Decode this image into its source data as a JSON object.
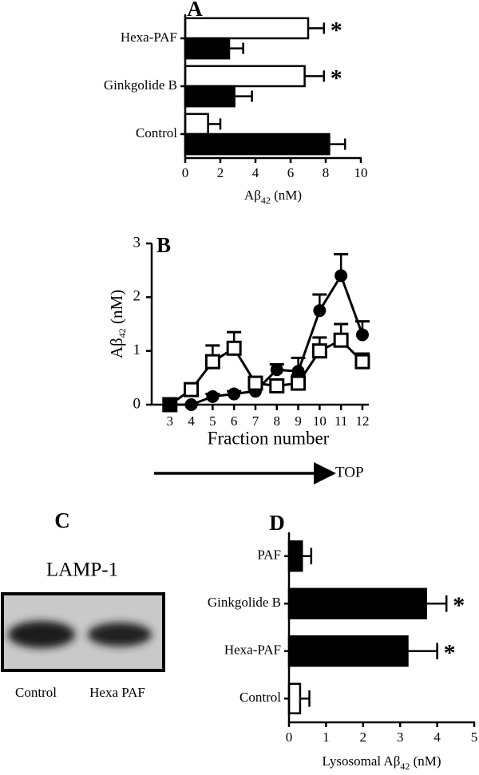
{
  "chart_data": [
    {
      "type": "hbar",
      "label": "A",
      "xlabel": [
        "Aβ",
        "42",
        " (nM)"
      ],
      "categories": [
        "Control",
        "Ginkgolide B",
        "Hexa-PAF"
      ],
      "xlim": [
        0,
        10
      ],
      "xticks": [
        0,
        2,
        4,
        6,
        8,
        10
      ],
      "series": [
        {
          "color": "#ffffff",
          "values": [
            1.3,
            6.8,
            7.0
          ],
          "errors": [
            0.7,
            1.1,
            0.9
          ],
          "annotations": [
            null,
            "*",
            "*"
          ]
        },
        {
          "color": "#000000",
          "values": [
            8.2,
            2.8,
            2.5
          ],
          "errors": [
            0.9,
            1.0,
            0.8
          ]
        }
      ]
    },
    {
      "type": "line",
      "label": "B",
      "xlabel": "Fraction number",
      "ylabel": [
        "Aβ",
        "42",
        " (nM)"
      ],
      "x": [
        3,
        4,
        5,
        6,
        7,
        8,
        9,
        10,
        11,
        12
      ],
      "xlim": [
        2.15,
        12.3
      ],
      "xticks": [
        3,
        4,
        5,
        6,
        7,
        8,
        9,
        10,
        11,
        12
      ],
      "ylim": [
        0,
        3
      ],
      "yticks": [
        0,
        1,
        2,
        3
      ],
      "annotation": "TOP",
      "series": [
        {
          "marker": "circle",
          "color": "#000000",
          "values": [
            0,
            0,
            0.15,
            0.2,
            0.25,
            0.65,
            0.62,
            1.75,
            2.4,
            1.3
          ],
          "errors": [
            0,
            0,
            0.05,
            0.05,
            0.05,
            0.1,
            0.25,
            0.3,
            0.4,
            0.25
          ]
        },
        {
          "marker": "square",
          "color": "#000000",
          "values": [
            0,
            0.28,
            0.8,
            1.05,
            0.4,
            0.35,
            0.4,
            1.0,
            1.2,
            0.8
          ],
          "errors": [
            0,
            0.05,
            0.3,
            0.3,
            0.1,
            0.1,
            0.15,
            0.25,
            0.3,
            0.15
          ]
        }
      ]
    },
    {
      "type": "hbar",
      "label": "D",
      "xlabel": [
        "Lysosomal Aβ",
        "42",
        " (nM)"
      ],
      "categories": [
        "Control",
        "Hexa-PAF",
        "Ginkgolide B",
        "PAF"
      ],
      "xlim": [
        0,
        5
      ],
      "xticks": [
        0,
        1,
        2,
        3,
        4,
        5
      ],
      "series": [
        {
          "colors": [
            "#ffffff",
            "#000000",
            "#000000",
            "#000000"
          ],
          "values": [
            0.3,
            3.2,
            3.7,
            0.35
          ],
          "errors": [
            0.25,
            0.8,
            0.55,
            0.25
          ],
          "annotations": [
            null,
            "*",
            "*",
            null
          ]
        }
      ]
    }
  ],
  "blot": {
    "label": "C",
    "title": "LAMP-1",
    "lanes": [
      "Control",
      "Hexa PAF"
    ]
  }
}
